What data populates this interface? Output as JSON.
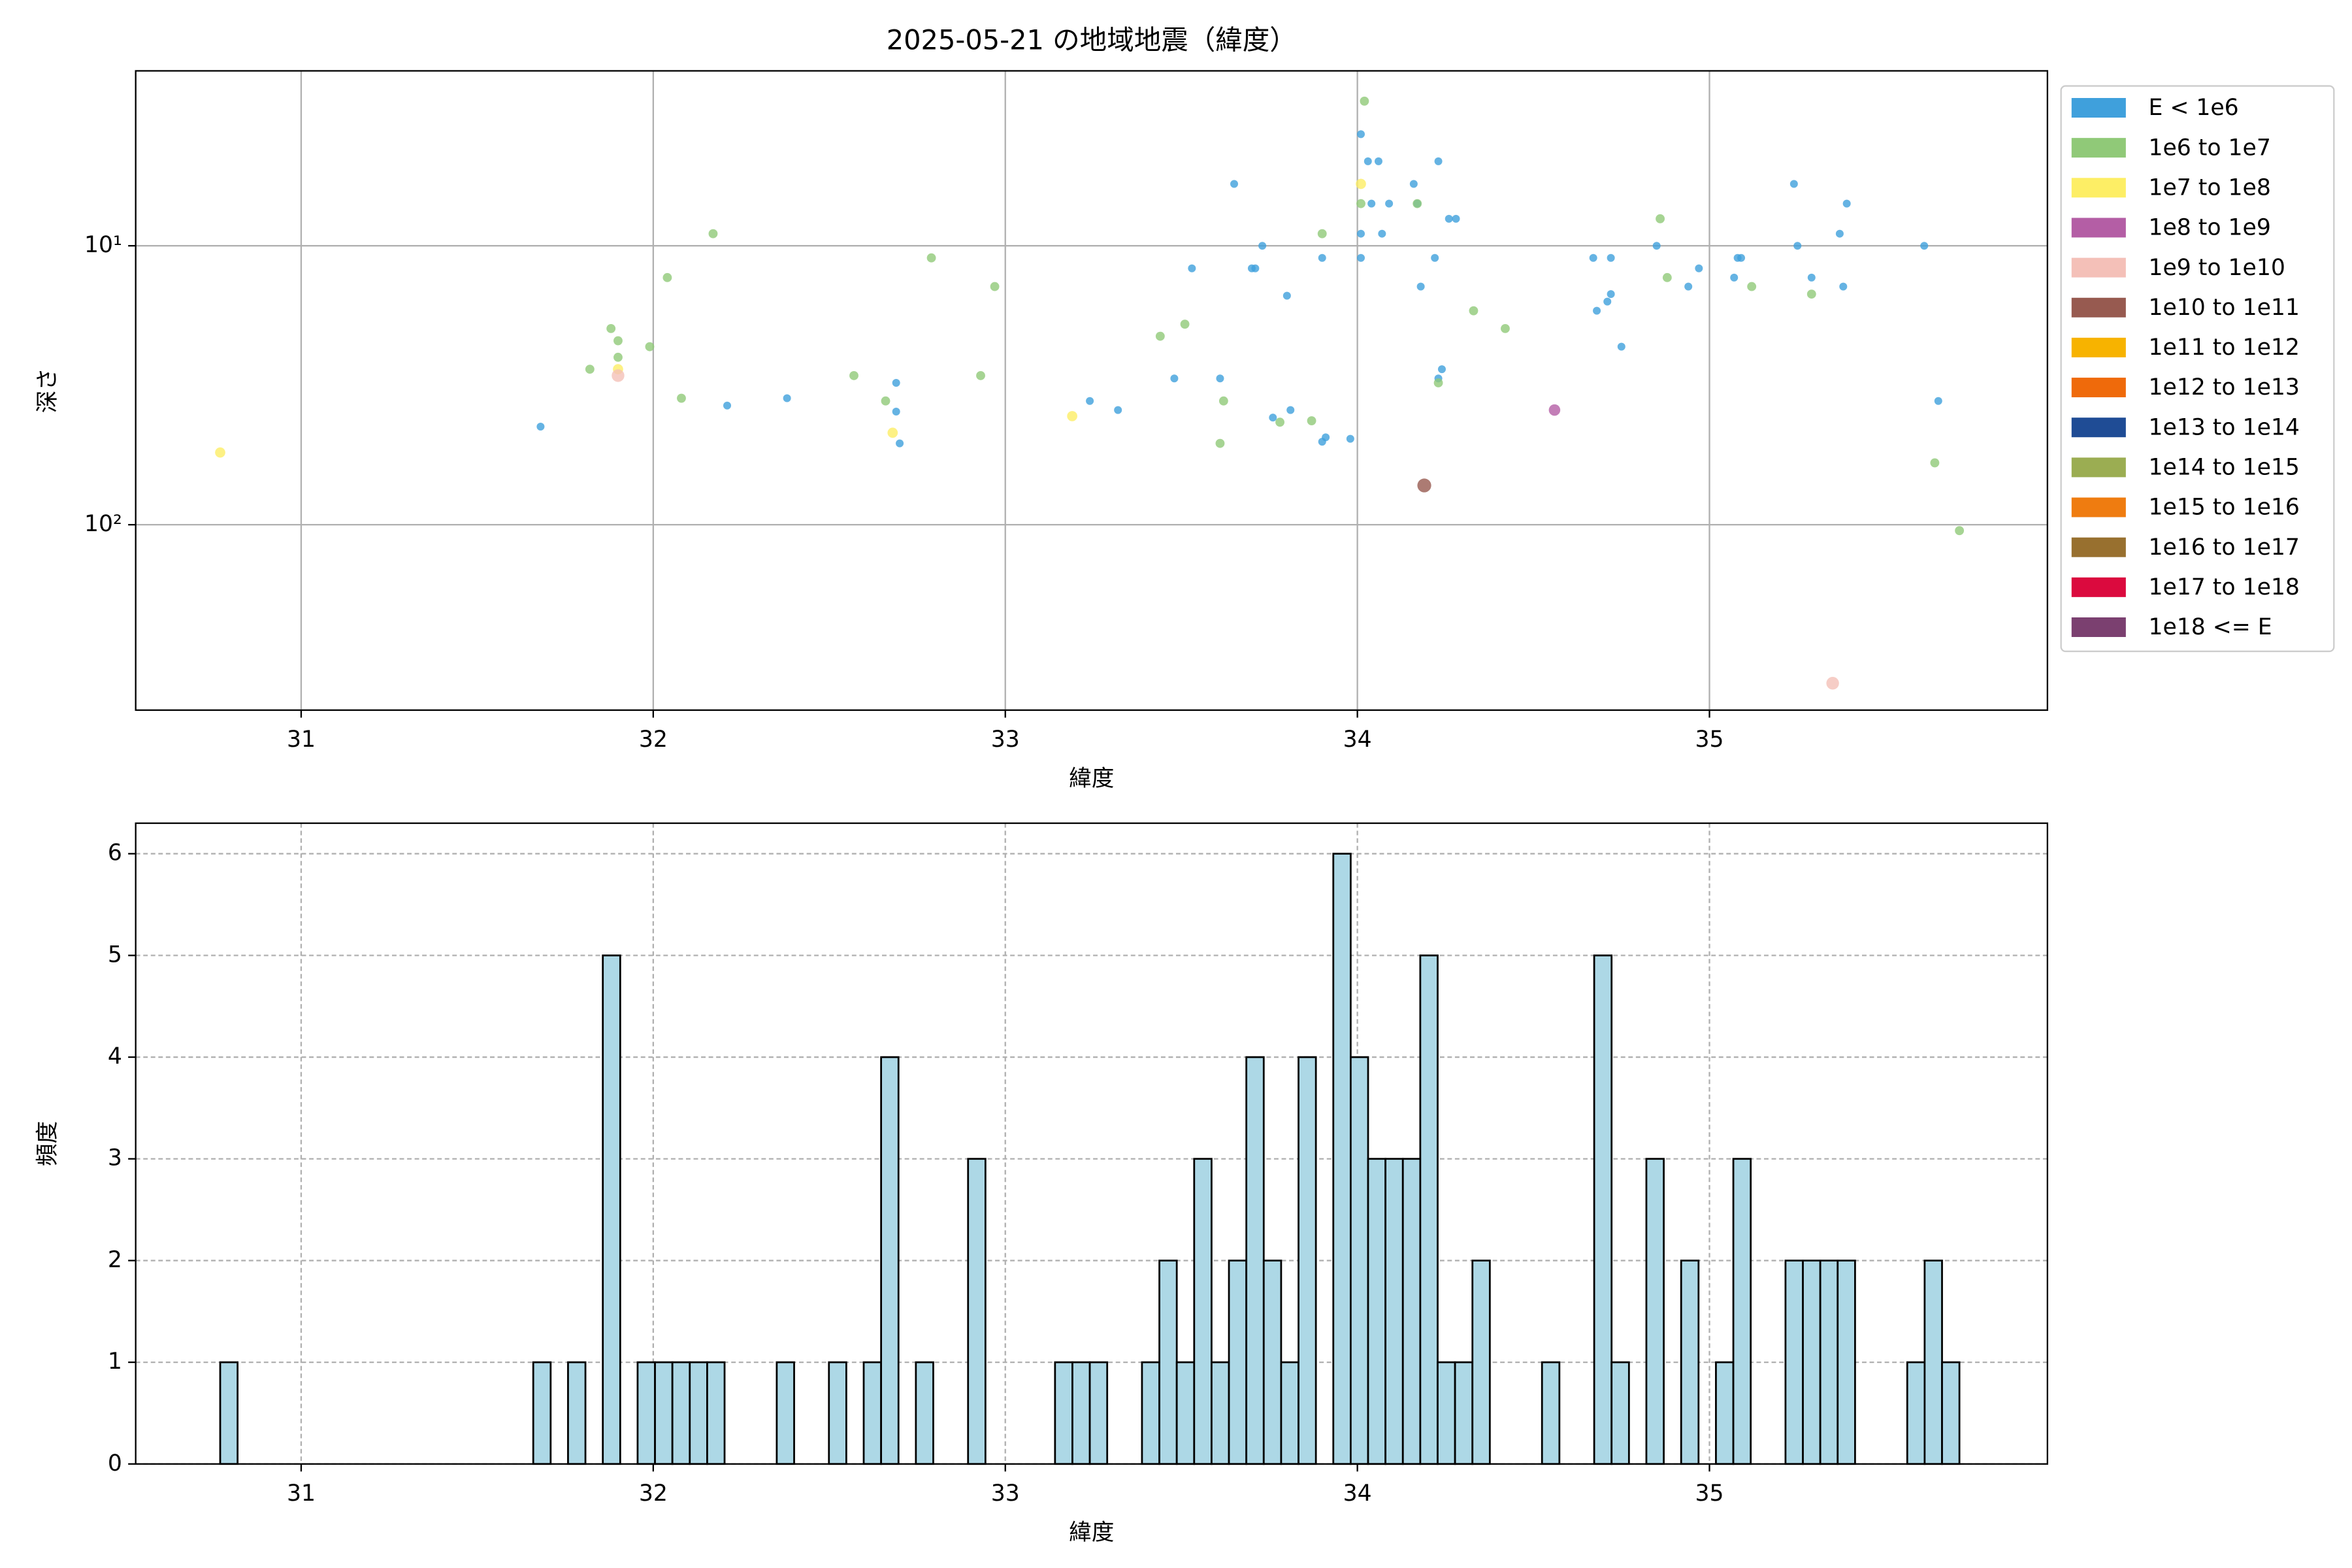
{
  "chart_data": [
    {
      "type": "scatter",
      "title": "2025-05-21 の地域地震（緯度）",
      "x_label": "緯度",
      "y_label": "深さ",
      "xlim": [
        30.53,
        35.96
      ],
      "xticks": [
        31,
        32,
        33,
        34,
        35
      ],
      "yscale": "log",
      "ylim": [
        462,
        2.36
      ],
      "yticks": [
        {
          "value": 10,
          "label": "10¹"
        },
        {
          "value": 100,
          "label": "10²"
        }
      ],
      "grid": true,
      "legend": "outside-right",
      "series": [
        {
          "name": "E < 1e6",
          "color": "#3fa0dc",
          "x": [
            31.68,
            32.21,
            32.38,
            32.69,
            32.69,
            32.7,
            33.24,
            33.32,
            33.53,
            33.48,
            33.61,
            33.65,
            33.7,
            33.71,
            33.73,
            33.8,
            33.81,
            33.76,
            33.91,
            33.9,
            33.98,
            33.9,
            34.01,
            34.03,
            34.06,
            34.01,
            34.01,
            34.04,
            34.09,
            34.07,
            34.17,
            34.16,
            34.18,
            34.23,
            34.22,
            34.24,
            34.23,
            34.26,
            34.28,
            34.67,
            34.72,
            34.72,
            34.71,
            34.68,
            34.75,
            34.85,
            34.94,
            34.97,
            35.07,
            35.08,
            35.09,
            35.24,
            35.25,
            35.29,
            35.37,
            35.38,
            35.39,
            35.61,
            35.65
          ],
          "values": [
            44.5,
            37.4,
            35.2,
            31.0,
            39.3,
            51.1,
            36.0,
            38.8,
            12.05,
            29.9,
            29.9,
            6.0,
            12.05,
            12.05,
            10,
            15.1,
            38.8,
            41.3,
            48.6,
            50.4,
            49.2,
            11.05,
            3.98,
            4.98,
            4.98,
            9.05,
            11.05,
            7.06,
            7.06,
            9.05,
            7.06,
            6.0,
            14.0,
            4.98,
            11.05,
            27.7,
            29.9,
            8.0,
            8.0,
            11.05,
            11.05,
            14.9,
            15.85,
            17.1,
            23.0,
            10,
            14.0,
            12.05,
            13.0,
            11.05,
            11.05,
            6.0,
            10,
            13.0,
            9.05,
            14.0,
            7.06,
            10,
            36.0
          ]
        },
        {
          "name": "1e6 to 1e7",
          "color": "#90c978",
          "x": [
            31.82,
            31.88,
            31.9,
            31.9,
            31.99,
            32.04,
            32.08,
            32.17,
            32.57,
            32.66,
            32.79,
            32.93,
            32.97,
            33.44,
            33.51,
            33.61,
            33.62,
            33.78,
            33.87,
            33.9,
            34.02,
            34.01,
            34.17,
            34.23,
            34.33,
            34.42,
            34.86,
            34.88,
            35.12,
            35.29,
            35.64,
            35.71
          ],
          "values": [
            27.7,
            19.8,
            21.9,
            25.1,
            23.0,
            13.0,
            35.2,
            9.05,
            29.2,
            36.0,
            11.05,
            29.2,
            14.0,
            21.1,
            19.1,
            51.1,
            36.0,
            42.9,
            42.4,
            9.05,
            3.03,
            7.06,
            7.06,
            31.0,
            17.1,
            19.8,
            8.0,
            13.0,
            14.0,
            14.9,
            60.0,
            105
          ]
        },
        {
          "name": "1e7 to 1e8",
          "color": "#fdee65",
          "x": [
            30.77,
            31.9,
            32.68,
            33.19,
            34.01
          ],
          "values": [
            55.1,
            27.7,
            46.8,
            40.8,
            6.0
          ]
        },
        {
          "name": "1e8 to 1e9",
          "color": "#b45ea5",
          "x": [
            34.56
          ],
          "values": [
            38.8
          ]
        },
        {
          "name": "1e9 to 1e10",
          "color": "#f4c0b8",
          "x": [
            31.9,
            35.35
          ],
          "values": [
            29.2,
            370
          ]
        },
        {
          "name": "1e10 to 1e11",
          "color": "#975a50",
          "x": [
            34.19
          ],
          "values": [
            72.3
          ]
        },
        {
          "name": "1e11 to 1e12",
          "color": "#f7b300",
          "x": [],
          "values": []
        },
        {
          "name": "1e12 to 1e13",
          "color": "#ef6a0b",
          "x": [],
          "values": []
        },
        {
          "name": "1e13 to 1e14",
          "color": "#1f4c95",
          "x": [],
          "values": []
        },
        {
          "name": "1e14 to 1e15",
          "color": "#9bad52",
          "x": [],
          "values": []
        },
        {
          "name": "1e15 to 1e16",
          "color": "#ef7c10",
          "x": [],
          "values": []
        },
        {
          "name": "1e16 to 1e17",
          "color": "#98702f",
          "x": [],
          "values": []
        },
        {
          "name": "1e17 to 1e18",
          "color": "#db0a3e",
          "x": [],
          "values": []
        },
        {
          "name": "1e18 <= E",
          "color": "#7b4070",
          "x": [],
          "values": []
        }
      ]
    },
    {
      "type": "histogram",
      "x_label": "緯度",
      "y_label": "頻度",
      "color": "#add8e6",
      "edgecolor": "#000000",
      "xlim": [
        30.53,
        35.96
      ],
      "xticks": [
        31,
        32,
        33,
        34,
        35
      ],
      "ylim": [
        0,
        6.3
      ],
      "yticks": [
        0,
        1,
        2,
        3,
        4,
        5,
        6
      ],
      "grid": true,
      "bins": [
        30.77,
        30.8194,
        30.8688,
        30.9182,
        30.9676,
        31.017,
        31.0664,
        31.1158,
        31.1652,
        31.2146,
        31.264,
        31.3134,
        31.3628,
        31.4122,
        31.4616,
        31.511,
        31.5604,
        31.6098,
        31.6592,
        31.7086,
        31.758,
        31.8074,
        31.8568,
        31.9062,
        31.9556,
        32.005,
        32.0544,
        32.1038,
        32.1532,
        32.2026,
        32.252,
        32.3014,
        32.3508,
        32.4002,
        32.4496,
        32.499,
        32.5484,
        32.5978,
        32.6472,
        32.6966,
        32.746,
        32.7954,
        32.8448,
        32.8942,
        32.9436,
        32.993,
        33.0424,
        33.0918,
        33.1412,
        33.1906,
        33.24,
        33.2894,
        33.3388,
        33.3882,
        33.4376,
        33.487,
        33.5364,
        33.5858,
        33.6352,
        33.6846,
        33.734,
        33.7834,
        33.8328,
        33.8822,
        33.9316,
        33.981,
        34.0304,
        34.0798,
        34.1292,
        34.1786,
        34.228,
        34.2774,
        34.3268,
        34.3762,
        34.4256,
        34.475,
        34.5244,
        34.5738,
        34.6232,
        34.6726,
        34.722,
        34.7714,
        34.8208,
        34.8702,
        34.9196,
        34.969,
        35.0184,
        35.0678,
        35.1172,
        35.1666,
        35.216,
        35.2654,
        35.3148,
        35.3642,
        35.4136,
        35.463,
        35.5124,
        35.5618,
        35.6112,
        35.6606,
        35.71
      ],
      "values": [
        1,
        0,
        0,
        0,
        0,
        0,
        0,
        0,
        0,
        0,
        0,
        0,
        0,
        0,
        0,
        0,
        0,
        0,
        1,
        0,
        1,
        0,
        5,
        0,
        1,
        1,
        1,
        1,
        1,
        0,
        0,
        0,
        1,
        0,
        0,
        1,
        0,
        1,
        4,
        0,
        1,
        0,
        0,
        3,
        0,
        0,
        0,
        0,
        1,
        1,
        1,
        0,
        0,
        1,
        2,
        1,
        3,
        1,
        2,
        4,
        2,
        1,
        4,
        0,
        6,
        4,
        3,
        3,
        3,
        5,
        1,
        1,
        2,
        0,
        0,
        0,
        1,
        0,
        0,
        5,
        1,
        0,
        3,
        0,
        2,
        0,
        1,
        3,
        0,
        0,
        2,
        2,
        2,
        2,
        0,
        0,
        0,
        1,
        2,
        1
      ]
    }
  ]
}
